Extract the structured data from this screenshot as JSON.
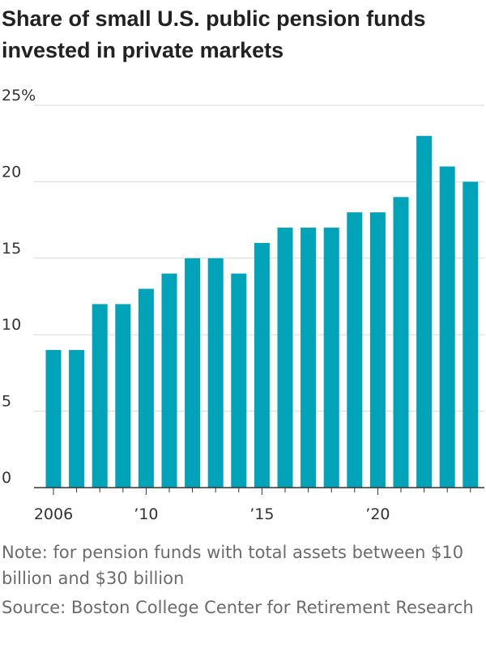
{
  "colors": {
    "bar": "#00a3b8",
    "grid": "#d9d9d9",
    "axis": "#333333",
    "text": "#222222",
    "footnote": "#6b6b6b"
  },
  "note": "Note: for pension funds with total assets between $10 billion and $30 billion",
  "source": "Source: Boston College Center for Retirement Research",
  "chart_data": {
    "type": "bar",
    "title": "Share of small U.S. public pension funds invested in private markets",
    "xlabel": "",
    "ylabel": "",
    "x": [
      2006,
      2007,
      2008,
      2009,
      2010,
      2011,
      2012,
      2013,
      2014,
      2015,
      2016,
      2017,
      2018,
      2019,
      2020,
      2021,
      2022,
      2023,
      2024
    ],
    "values": [
      9,
      9,
      12,
      12,
      13,
      14,
      15,
      15,
      14,
      16,
      17,
      17,
      17,
      18,
      18,
      19,
      23,
      21,
      20
    ],
    "ylim": [
      0,
      25
    ],
    "yticks": [
      0,
      5,
      10,
      15,
      20,
      25
    ],
    "ytick_labels": [
      "0",
      "5",
      "10",
      "15",
      "20",
      "25%"
    ],
    "xticks": [
      2006,
      2010,
      2015,
      2020
    ],
    "xtick_labels": [
      "2006",
      "’10",
      "’15",
      "’20"
    ],
    "grid": true,
    "legend": "none"
  }
}
